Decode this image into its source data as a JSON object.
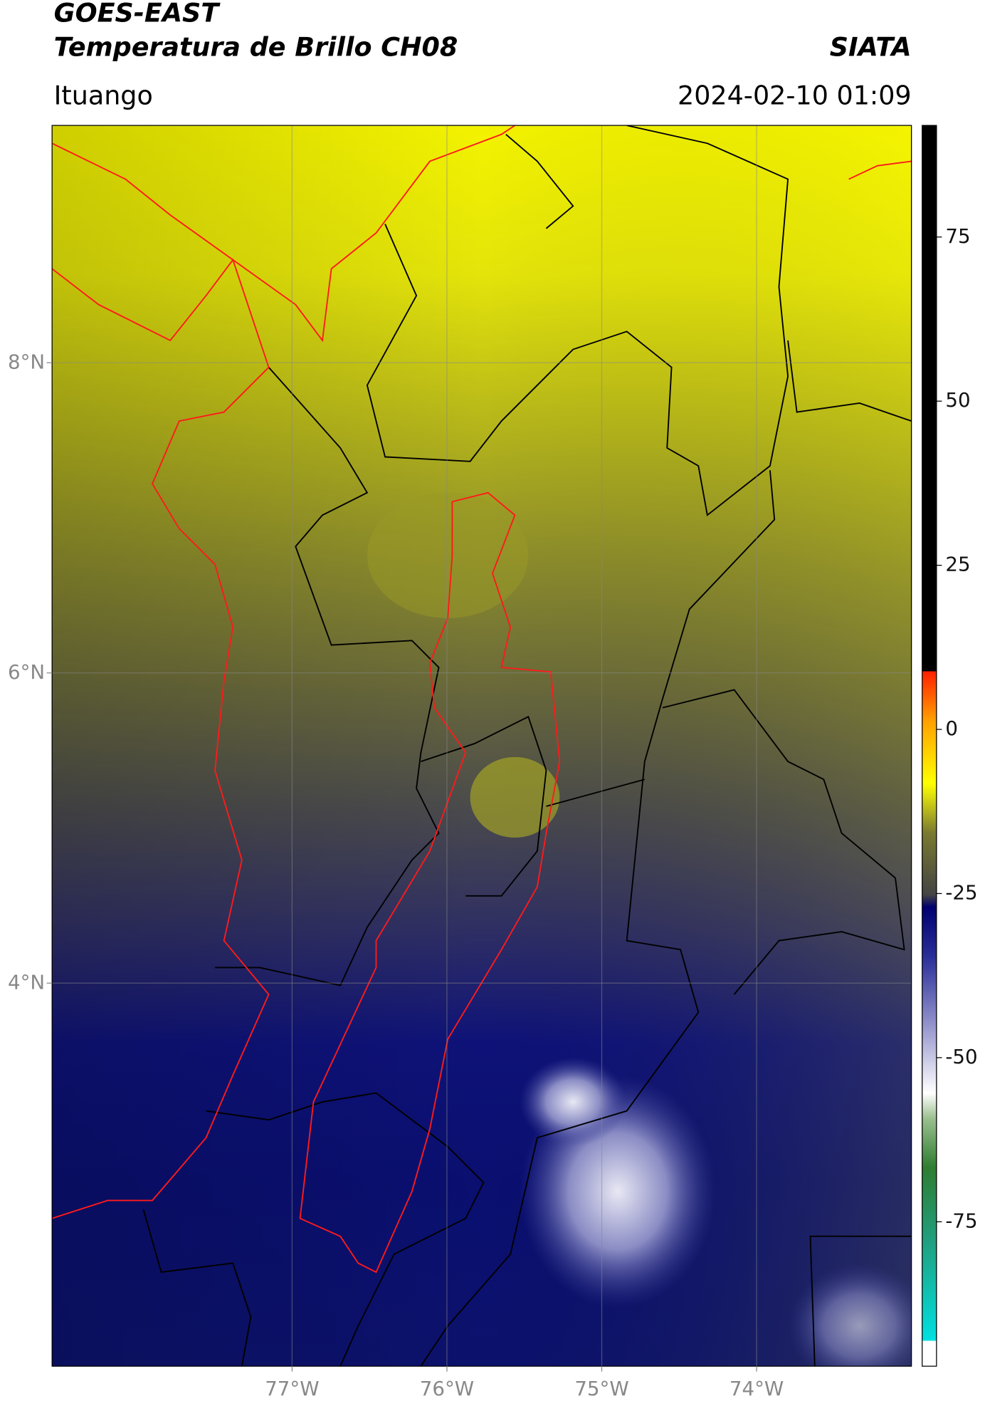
{
  "title": "GOES-EAST",
  "subtitle": "Temperatura de Brillo CH08",
  "credit": "SIATA",
  "location": "Ituango",
  "timestamp": "2024-02-10 01:09",
  "map": {
    "xlim": [
      -78.55,
      -73.0
    ],
    "ylim": [
      1.53,
      9.53
    ],
    "xticks": [
      {
        "value": -77,
        "label": "77°W"
      },
      {
        "value": -76,
        "label": "76°W"
      },
      {
        "value": -75,
        "label": "75°W"
      },
      {
        "value": -74,
        "label": "74°W"
      }
    ],
    "yticks": [
      {
        "value": 8,
        "label": "8°N"
      },
      {
        "value": 6,
        "label": "6°N"
      },
      {
        "value": 4,
        "label": "4°N"
      }
    ],
    "grid": true
  },
  "colorbar": {
    "lim": [
      -97,
      92
    ],
    "ticks": [
      75,
      50,
      25,
      0,
      -25,
      -50,
      -75
    ]
  }
}
